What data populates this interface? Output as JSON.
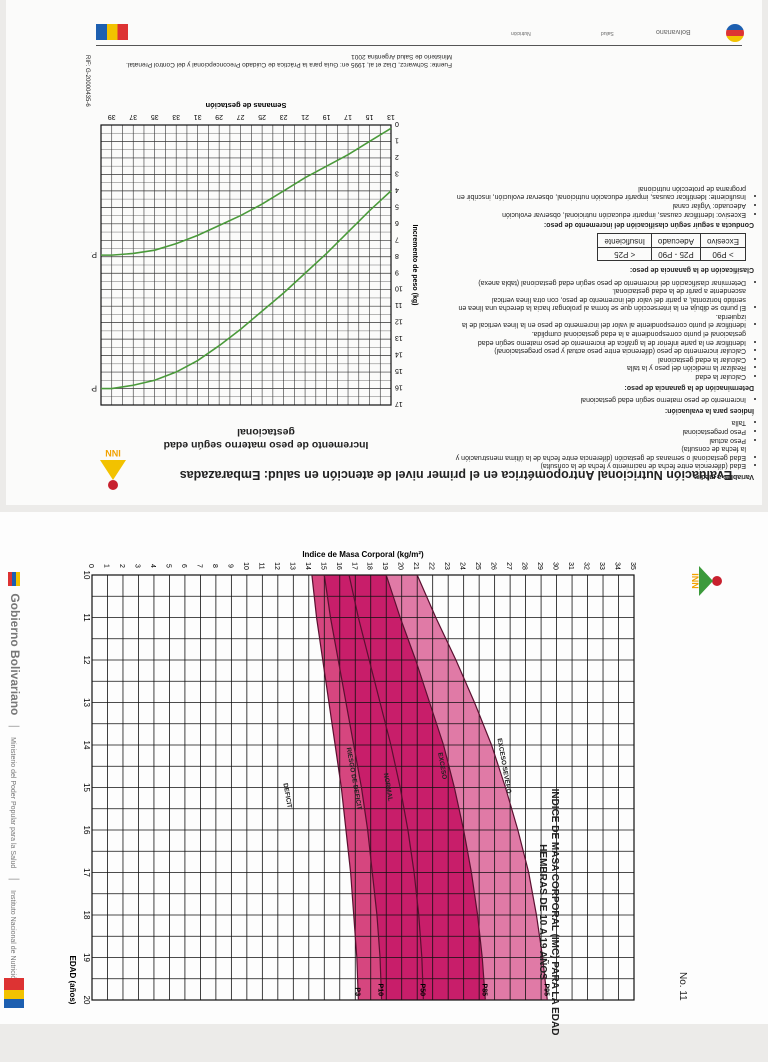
{
  "top_page": {
    "title": "Evaluación Nutricional Antropométrica en el primer nivel de atención en salud: Embarazadas",
    "header_strip": [
      "Bolivariano",
      "Salud",
      "Nutrición"
    ],
    "logo": "INN",
    "chart_title": "Incremento de peso materno según edad gestacional",
    "variables_heading": "Variables a medir:",
    "variables": [
      "Edad (diferencia entre fecha de nacimiento y fecha de la consulta)",
      "Edad gestacional o semanas de gestación (diferencia entre fecha de la última menstruación y la fecha de consulta)",
      "Peso actual",
      "Peso pregestacional",
      "Talla"
    ],
    "indices_heading": "Índices para la evaluación:",
    "indices": [
      "Incremento de peso materno según edad gestacional"
    ],
    "determination_heading": "Determinación de la ganancia de peso:",
    "determination": [
      "Calcular la edad",
      "Realizar la medición del peso y la talla",
      "Calcular la edad gestacional",
      "Calcular incremento de peso (diferencia entre peso actual y peso pregestacional)",
      "Identificar en la parte inferior de la gráfica de incremento de peso materno según edad gestacional el punto correspondiente a la edad gestacional cumplida.",
      "Identificar el punto correspondiente al valor del incremento de peso en la línea vertical de la izquierda.",
      "El punto se dibuja en la intersección que se forma al prolongar hacia la derecha una línea en sentido horizontal, a partir del valor del incremento de peso, con otra línea vertical ascendente a partir de la edad gestacional.",
      "Determinar clasificación del incremento de peso según edad gestacional (tabla anexa)"
    ],
    "classification_heading": "Clasificación de la ganancia de peso:",
    "classification_table": {
      "headers": [
        "> P90",
        "P25 - P90",
        "< P25"
      ],
      "values": [
        "Excesivo",
        "Adecuado",
        "Insuficiente"
      ]
    },
    "conduct_heading": "Conducta a seguir según clasificación del incremento de peso:",
    "conduct": [
      "Excesivo: Identificar causas, impartir educación nutricional, observar evolución",
      "Adecuado: Vigilar canal",
      "Insuficiente: Identificar causas, impartir educación nutricional, observar evolución, inscribir en programa de protección nutricional"
    ],
    "source": "Fuente: Schwarcz, Díaz et al, 1995 en: Guía para la Práctica de Cuidado Preconcepcional y del Control Prenatal. Ministerio de Salud Argentina 2001",
    "code": "RIF: G-20000435-6"
  },
  "bottom_page": {
    "title_line1": "INDICE DE MASA CORPORAL (IMC) PARA LA EDAD",
    "title_line2": "HEMBRAS DE 10 A 19 AÑOS",
    "number": "No. 11",
    "logo": "INN",
    "footer_brand": "Gobierno Bolivariano",
    "footer_ministry": "Ministerio del Poder Popular para la Salud",
    "footer_institute": "Instituto Nacional de Nutrición",
    "footer_right": "Venezuela ahora es de todos"
  },
  "chart_data": [
    {
      "type": "line",
      "title": "Incremento de peso materno según edad gestacional",
      "xlabel": "Semanas de gestación",
      "ylabel": "Incremento de peso (kg)",
      "x_ticks": [
        13,
        15,
        17,
        19,
        21,
        23,
        25,
        27,
        29,
        31,
        33,
        35,
        37,
        39
      ],
      "y_ticks": [
        0,
        1,
        2,
        3,
        4,
        5,
        6,
        7,
        8,
        9,
        10,
        11,
        12,
        13,
        14,
        15,
        16,
        17
      ],
      "xlim": [
        13,
        40
      ],
      "ylim": [
        0,
        17
      ],
      "grid": true,
      "series": [
        {
          "name": "P25",
          "color": "#4a9a3a",
          "x": [
            13,
            15,
            17,
            19,
            21,
            23,
            25,
            27,
            29,
            31,
            33,
            35,
            37,
            39,
            40
          ],
          "values": [
            0.2,
            1.0,
            1.8,
            2.5,
            3.2,
            4.0,
            4.8,
            5.5,
            6.1,
            6.7,
            7.2,
            7.6,
            7.8,
            7.9,
            7.9
          ]
        },
        {
          "name": "P90",
          "color": "#4a9a3a",
          "x": [
            13,
            15,
            17,
            19,
            21,
            23,
            25,
            27,
            29,
            31,
            33,
            35,
            37,
            39,
            40
          ],
          "values": [
            4.0,
            5.2,
            6.5,
            7.8,
            9.0,
            10.2,
            11.3,
            12.4,
            13.4,
            14.3,
            15.0,
            15.5,
            15.8,
            16.0,
            16.0
          ]
        }
      ]
    },
    {
      "type": "area",
      "title": "Indice de Masa Corporal (IMC) para la edad — Hembras de 10 a 19 años",
      "xlabel": "EDAD (años)",
      "ylabel": "Indice de Masa Corporal (kg/m²)",
      "x_ticks": [
        10,
        11,
        12,
        13,
        14,
        15,
        16,
        17,
        18,
        19,
        20
      ],
      "y_ticks": [
        0,
        1,
        2,
        3,
        4,
        5,
        6,
        7,
        8,
        9,
        10,
        11,
        12,
        13,
        14,
        15,
        16,
        17,
        18,
        19,
        20,
        21,
        22,
        23,
        24,
        25,
        26,
        27,
        28,
        29,
        30,
        31,
        32,
        33,
        34,
        35
      ],
      "xlim": [
        10,
        20
      ],
      "ylim": [
        0,
        35
      ],
      "grid": true,
      "regions": [
        "DEFICIT",
        "RIESGO DE DEFICIT",
        "NORMAL",
        "EXCESO",
        "EXCESO SEVERO"
      ],
      "series": [
        {
          "name": "P3",
          "x": [
            10,
            11,
            12,
            13,
            14,
            15,
            16,
            17,
            18,
            19,
            20
          ],
          "values": [
            14.2,
            14.5,
            14.9,
            15.3,
            15.7,
            16.1,
            16.4,
            16.7,
            16.9,
            17.1,
            17.2
          ]
        },
        {
          "name": "P10",
          "x": [
            10,
            11,
            12,
            13,
            14,
            15,
            16,
            17,
            18,
            19,
            20
          ],
          "values": [
            15.0,
            15.4,
            15.9,
            16.4,
            16.9,
            17.4,
            17.8,
            18.1,
            18.4,
            18.6,
            18.7
          ]
        },
        {
          "name": "P50",
          "x": [
            10,
            11,
            12,
            13,
            14,
            15,
            16,
            17,
            18,
            19,
            20
          ],
          "values": [
            16.6,
            17.2,
            17.9,
            18.6,
            19.3,
            19.9,
            20.4,
            20.8,
            21.1,
            21.3,
            21.4
          ]
        },
        {
          "name": "P85",
          "x": [
            10,
            11,
            12,
            13,
            14,
            15,
            16,
            17,
            18,
            19,
            20
          ],
          "values": [
            19.0,
            19.9,
            20.9,
            21.8,
            22.7,
            23.4,
            24.0,
            24.5,
            24.9,
            25.2,
            25.4
          ]
        },
        {
          "name": "P95",
          "x": [
            10,
            11,
            12,
            13,
            14,
            15,
            16,
            17,
            18,
            19,
            20
          ],
          "values": [
            21.0,
            22.2,
            23.5,
            24.7,
            25.8,
            26.7,
            27.5,
            28.2,
            28.7,
            29.1,
            29.4
          ]
        }
      ],
      "legend_labels": [
        "P3",
        "P10",
        "P50",
        "P85",
        "P95"
      ]
    }
  ]
}
